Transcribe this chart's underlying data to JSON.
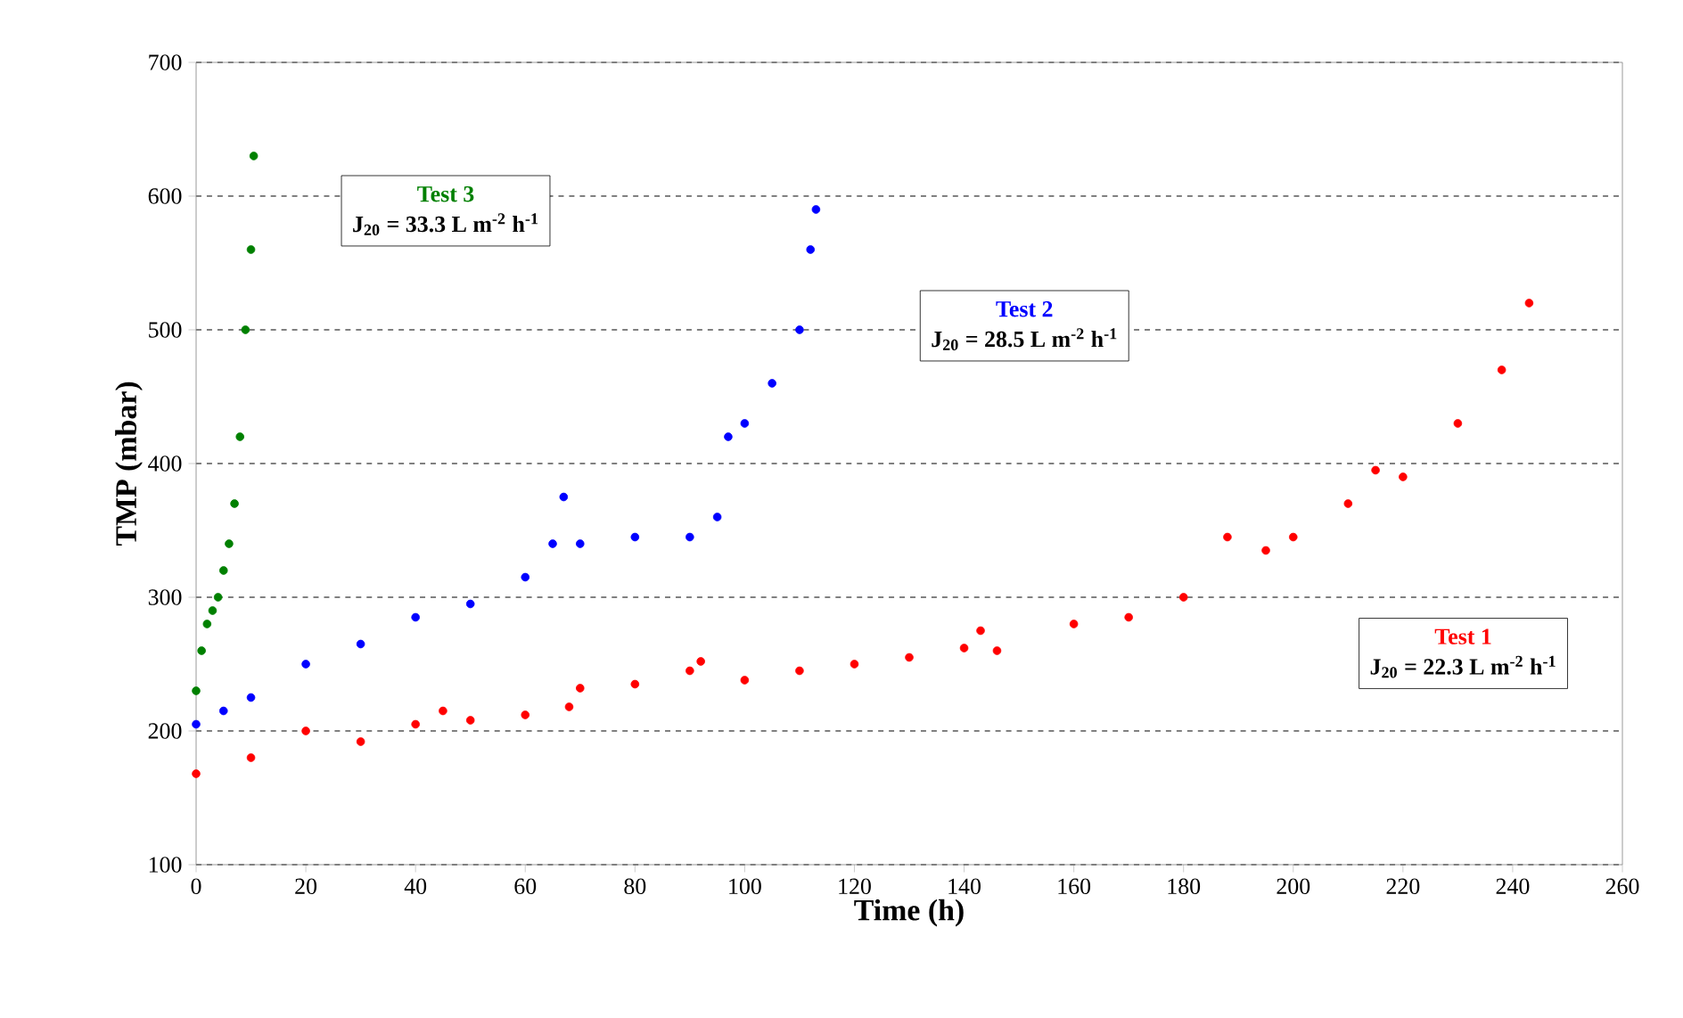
{
  "chart_data": {
    "type": "scatter",
    "xlabel": "Time  (h)",
    "ylabel": "TMP  (mbar)",
    "xlim": [
      0,
      260
    ],
    "xticks": [
      0,
      20,
      40,
      60,
      80,
      100,
      120,
      140,
      160,
      180,
      200,
      220,
      240,
      260
    ],
    "ylim": [
      100,
      700
    ],
    "yticks": [
      100,
      200,
      300,
      400,
      500,
      600,
      700
    ],
    "grid": "y",
    "series": [
      {
        "name": "Test 1",
        "color": "#ff0000",
        "x": [
          0,
          10,
          20,
          30,
          40,
          45,
          50,
          60,
          68,
          70,
          80,
          90,
          92,
          100,
          110,
          120,
          130,
          140,
          143,
          146,
          160,
          170,
          180,
          188,
          195,
          200,
          210,
          215,
          220,
          230,
          238,
          243
        ],
        "values": [
          168,
          180,
          200,
          192,
          205,
          215,
          208,
          212,
          218,
          232,
          235,
          245,
          252,
          238,
          245,
          250,
          255,
          262,
          275,
          260,
          280,
          285,
          300,
          345,
          335,
          345,
          370,
          395,
          390,
          430,
          470,
          520
        ]
      },
      {
        "name": "Test 2",
        "color": "#0000ff",
        "x": [
          0,
          5,
          10,
          20,
          30,
          40,
          50,
          60,
          65,
          67,
          70,
          80,
          90,
          95,
          97,
          100,
          105,
          110,
          112,
          113
        ],
        "values": [
          205,
          215,
          225,
          250,
          265,
          285,
          295,
          315,
          340,
          375,
          340,
          345,
          345,
          360,
          420,
          430,
          460,
          500,
          560,
          590
        ]
      },
      {
        "name": "Test 3",
        "color": "#008000",
        "x": [
          0,
          1,
          2,
          3,
          4,
          5,
          6,
          7,
          8,
          9,
          10,
          10.5
        ],
        "values": [
          230,
          260,
          280,
          290,
          300,
          320,
          340,
          370,
          420,
          500,
          560,
          630
        ]
      }
    ],
    "annotations": [
      "J$_{20}$ = 22.3 L m$^{-2}$ h$^{-1}$",
      "J$_{20}$ = 28.5 L m$^{-2}$ h$^{-1}$",
      "J$_{20}$ = 33.3 L m$^{-2}$ h$^{-1}$"
    ]
  }
}
